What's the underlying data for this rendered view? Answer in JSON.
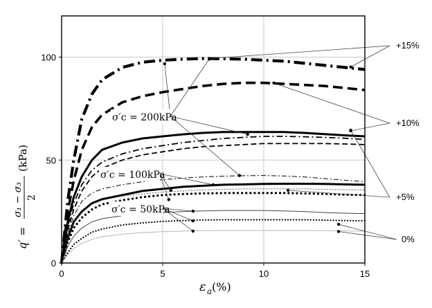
{
  "chart_data": {
    "type": "line",
    "xlim": [
      0,
      15
    ],
    "ylim": [
      0,
      120
    ],
    "x_ticks": [
      "0",
      "5",
      "10",
      "15"
    ],
    "y_ticks": [
      "0",
      "50",
      "100"
    ],
    "grid": true,
    "xlabel": {
      "symbol": "ε",
      "sub": "a",
      "unit": "(%)"
    },
    "ylabel": {
      "lhs": "q′ =",
      "num": "σ₁ − σ₃",
      "den": "2",
      "unit": "(kPa)"
    },
    "stress_labels": [
      {
        "text": "σ′c = 200kPa",
        "anchor": [
          2.5,
          71
        ]
      },
      {
        "text": "σ′c = 100kPa",
        "anchor": [
          1.9,
          43
        ]
      },
      {
        "text": "σ′c = 50kPa",
        "anchor": [
          2.4,
          26
        ]
      }
    ],
    "group_labels": [
      "+15%",
      "+10%",
      "+5%",
      "0%"
    ],
    "series": [
      {
        "confining": 200,
        "offset": "+15%",
        "style": "dashdot-heavy",
        "x": [
          0,
          0.3,
          0.6,
          1,
          1.5,
          2,
          3,
          4,
          5,
          6,
          7,
          8,
          9,
          10,
          11,
          12,
          13,
          14,
          15
        ],
        "y": [
          0,
          30,
          50,
          70,
          82,
          89,
          95,
          97.5,
          98.5,
          99,
          99.3,
          99.2,
          99,
          98.5,
          98,
          97,
          96,
          95,
          94
        ]
      },
      {
        "confining": 200,
        "offset": "+10%",
        "style": "dash-heavy",
        "x": [
          0,
          0.3,
          0.6,
          1,
          1.5,
          2,
          3,
          4,
          5,
          6,
          7,
          8,
          9,
          10,
          11,
          12,
          13,
          14,
          15
        ],
        "y": [
          0,
          25,
          40,
          55,
          66,
          72,
          78,
          81,
          83,
          84.5,
          86,
          87,
          87.5,
          87.5,
          87,
          86.5,
          86,
          85,
          84
        ]
      },
      {
        "confining": 200,
        "offset": "+5%",
        "style": "solid-heavy",
        "x": [
          0,
          0.3,
          0.6,
          1,
          1.5,
          2,
          3,
          4,
          5,
          6,
          7,
          8,
          9,
          10,
          11,
          12,
          13,
          14,
          15
        ],
        "y": [
          0,
          20,
          32,
          42,
          50,
          55,
          58.5,
          60.5,
          61.5,
          62.5,
          63.2,
          63.6,
          63.6,
          63.6,
          63.6,
          63.2,
          62.6,
          62,
          61.5
        ]
      },
      {
        "confining": 200,
        "offset": "0%",
        "style": "dashdot-medium",
        "x": [
          0,
          0.3,
          0.6,
          1,
          1.5,
          2,
          3,
          4,
          5,
          6,
          7,
          8,
          9,
          10,
          11,
          12,
          13,
          14,
          15
        ],
        "y": [
          0,
          18,
          29,
          38,
          45,
          49,
          53,
          55.5,
          57,
          58.5,
          59.5,
          60.5,
          61,
          61.5,
          61.5,
          61.3,
          61,
          60.6,
          60
        ]
      },
      {
        "confining": 200,
        "offset": "extra",
        "style": "dash-medium",
        "x": [
          0,
          0.3,
          0.6,
          1,
          1.5,
          2,
          3,
          4,
          5,
          6,
          7,
          8,
          9,
          10,
          11,
          12,
          13,
          14,
          15
        ],
        "y": [
          0,
          16,
          26,
          35,
          42,
          46,
          50,
          52.5,
          54,
          55.5,
          56.5,
          57,
          57.5,
          58,
          58,
          58,
          58,
          57.8,
          57.5
        ]
      },
      {
        "confining": 100,
        "offset": "+15%",
        "style": "dashdot-thin",
        "x": [
          0,
          0.3,
          0.6,
          1,
          1.5,
          2,
          3,
          4,
          5,
          6,
          7,
          8,
          9,
          10,
          11,
          12,
          13,
          14,
          15
        ],
        "y": [
          0,
          14,
          23,
          30,
          34,
          36,
          38,
          39.5,
          40.5,
          41.2,
          41.8,
          42.2,
          42.4,
          42.5,
          42.3,
          41.8,
          41,
          40.2,
          39.5
        ]
      },
      {
        "confining": 100,
        "offset": "+10%",
        "style": "solid-heavy",
        "x": [
          0,
          0.3,
          0.6,
          1,
          1.5,
          2,
          3,
          4,
          5,
          6,
          7,
          8,
          9,
          10,
          11,
          12,
          13,
          14,
          15
        ],
        "y": [
          0,
          12,
          20,
          25,
          29,
          31,
          33,
          35,
          36,
          37,
          37.5,
          38,
          38.2,
          38.4,
          38.5,
          38.5,
          38.4,
          38.2,
          38
        ]
      },
      {
        "confining": 100,
        "offset": "+5%",
        "style": "dotted-thin",
        "x": [
          0,
          0.3,
          0.6,
          1,
          1.5,
          2,
          3,
          4,
          5,
          6,
          7,
          8,
          9,
          10,
          11,
          12,
          13,
          14,
          15
        ],
        "y": [
          0,
          12,
          20,
          25,
          28.5,
          30.5,
          32.5,
          33.5,
          34.5,
          35,
          35.5,
          35.8,
          36,
          36,
          36,
          36,
          35.8,
          35.6,
          35.5
        ]
      },
      {
        "confining": 100,
        "offset": "0%",
        "style": "dotted-heavy",
        "x": [
          0,
          0.3,
          0.6,
          1,
          1.5,
          2,
          3,
          4,
          5,
          6,
          7,
          8,
          9,
          10,
          11,
          12,
          13,
          14,
          15
        ],
        "y": [
          0,
          10,
          17,
          22,
          26,
          28.5,
          30.5,
          32,
          33,
          33.5,
          33.8,
          34,
          34,
          34,
          34,
          33.8,
          33.5,
          33.2,
          33
        ]
      },
      {
        "confining": 50,
        "offset": "+15%",
        "style": "solid-thin",
        "x": [
          0,
          0.3,
          0.6,
          1,
          1.5,
          2,
          3,
          4,
          5,
          6,
          7,
          8,
          9,
          10,
          11,
          12,
          13,
          14,
          15
        ],
        "y": [
          0,
          8,
          13,
          17,
          20,
          21.5,
          23,
          24,
          24.5,
          25,
          25.3,
          25.5,
          25.5,
          25.5,
          25.3,
          25,
          24.5,
          24.2,
          24
        ]
      },
      {
        "confining": 50,
        "offset": "+5%",
        "style": "dotted-medium",
        "x": [
          0,
          0.3,
          0.6,
          1,
          1.5,
          2,
          3,
          4,
          5,
          6,
          7,
          8,
          9,
          10,
          11,
          12,
          13,
          14,
          15
        ],
        "y": [
          0,
          5,
          9,
          12,
          15,
          16.5,
          18.5,
          19.5,
          20.2,
          20.6,
          20.9,
          21,
          21,
          21,
          21,
          21,
          20.8,
          20.6,
          20.5
        ]
      },
      {
        "confining": 50,
        "offset": "0%",
        "style": "solid-light",
        "x": [
          0,
          0.3,
          0.6,
          1,
          1.5,
          2,
          3,
          4,
          5,
          6,
          7,
          8,
          9,
          10,
          11,
          12,
          13,
          14,
          15
        ],
        "y": [
          0,
          4,
          7,
          9.5,
          11.5,
          12.8,
          14,
          14.8,
          15.2,
          15.5,
          15.7,
          15.8,
          15.8,
          15.8,
          15.8,
          15.8,
          15.7,
          15.6,
          15.5
        ]
      }
    ],
    "callouts": [
      {
        "group": "+15%",
        "points": [
          [
            7.3,
            99.3
          ],
          [
            14.3,
            95.2
          ]
        ]
      },
      {
        "group": "+10%",
        "points": [
          [
            10.5,
            87.4
          ],
          [
            14.3,
            64.2
          ]
        ]
      },
      {
        "group": "+5%",
        "points": [
          [
            14.3,
            64.5
          ],
          [
            11.2,
            35.3
          ]
        ]
      },
      {
        "group": "0%",
        "points": [
          [
            13.7,
            18.8
          ],
          [
            13.7,
            15.3
          ]
        ]
      }
    ],
    "label_pointers": [
      {
        "label": 0,
        "points": [
          [
            5.1,
            96.8
          ],
          [
            7.3,
            99
          ],
          [
            9.2,
            62.5
          ],
          [
            8.8,
            42.5
          ]
        ]
      },
      {
        "label": 1,
        "points": [
          [
            7.5,
            38
          ],
          [
            5.4,
            35.3
          ],
          [
            5.3,
            30.8
          ]
        ]
      },
      {
        "label": 2,
        "points": [
          [
            6.5,
            25.2
          ],
          [
            6.5,
            20.5
          ],
          [
            6.5,
            15.5
          ]
        ]
      }
    ]
  }
}
